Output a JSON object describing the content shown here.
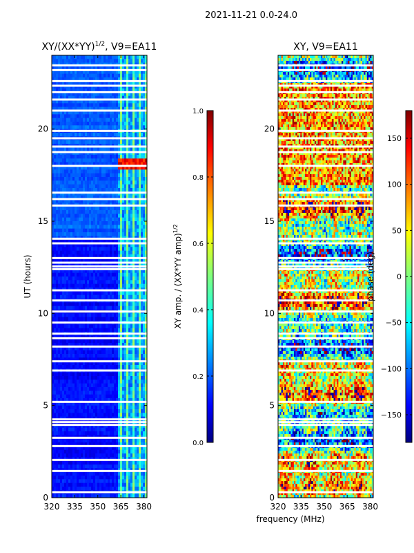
{
  "figure": {
    "suptitle": "2021-11-21 0.0-24.0",
    "shared_xlabel": "frequency (MHz)"
  },
  "colormap": {
    "name": "jet",
    "stops": [
      "#00007f",
      "#0000ff",
      "#007fff",
      "#00ffff",
      "#7fff7f",
      "#ffff00",
      "#ff7f00",
      "#ff0000",
      "#7f0000"
    ]
  },
  "chart_data": [
    {
      "type": "heatmap",
      "panel": "left",
      "title_prefix": "XY/(XX*YY)",
      "title_sup": "1/2",
      "title_suffix": ", V9=EA11",
      "xlabel": "",
      "ylabel": "UT (hours)",
      "xlim": [
        320,
        382
      ],
      "ylim": [
        0,
        24
      ],
      "xticks": [
        "320",
        "335",
        "350",
        "365",
        "380"
      ],
      "yticks": [
        "0",
        "5",
        "10",
        "15",
        "20"
      ],
      "bright_channel_band_mhz": [
        362,
        382
      ],
      "bright_spot_ut_hours": [
        17.8,
        18.4
      ],
      "colorbar": {
        "label_prefix": "XY amp. / (XX*YY amp)",
        "label_sup": "1/2",
        "range": [
          0.0,
          1.0
        ],
        "ticks": [
          "0.0",
          "0.2",
          "0.4",
          "0.6",
          "0.8",
          "1.0"
        ]
      }
    },
    {
      "type": "heatmap",
      "panel": "right",
      "title": "XY, V9=EA11",
      "xlabel": "",
      "ylabel": "",
      "xlim": [
        320,
        382
      ],
      "ylim": [
        0,
        24
      ],
      "xticks": [
        "320",
        "335",
        "350",
        "365",
        "380"
      ],
      "yticks": [
        "0",
        "5",
        "10",
        "15",
        "20"
      ],
      "colorbar": {
        "label": "phase (deg)",
        "range": [
          -180,
          180
        ],
        "ticks": [
          "−150",
          "−100",
          "−50",
          "0",
          "50",
          "100",
          "150"
        ]
      }
    }
  ],
  "flagged_gaps_ut_hours": [
    0.3,
    1.45,
    2.05,
    2.8,
    3.25,
    3.95,
    4.1,
    4.25,
    5.2,
    6.9,
    7.4,
    8.2,
    8.65,
    8.9,
    9.5,
    10.1,
    10.7,
    11.25,
    12.4,
    12.55,
    12.75,
    13.0,
    13.8,
    14.05,
    15.85,
    16.2,
    16.55,
    18.0,
    18.75,
    19.05,
    19.5,
    19.9,
    21.0,
    21.6,
    22.0,
    22.35,
    22.6,
    23.2,
    23.45
  ]
}
